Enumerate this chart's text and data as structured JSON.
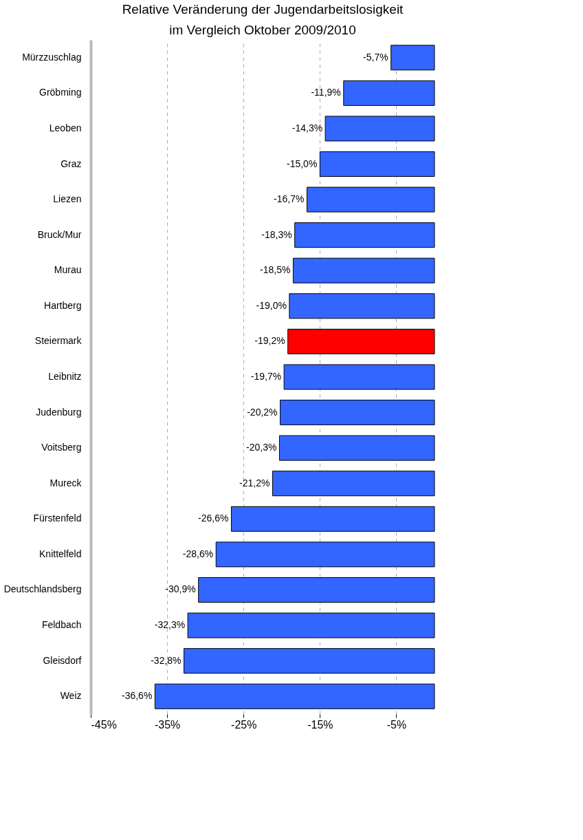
{
  "chart_data": {
    "type": "bar",
    "orientation": "horizontal",
    "title": [
      "Relative Veränderung der Jugendarbeitslosigkeit",
      "im Vergleich Oktober 2009/2010"
    ],
    "categories": [
      "Mürzzuschlag",
      "Gröbming",
      "Leoben",
      "Graz",
      "Liezen",
      "Bruck/Mur",
      "Murau",
      "Hartberg",
      "Steiermark",
      "Leibnitz",
      "Judenburg",
      "Voitsberg",
      "Mureck",
      "Fürstenfeld",
      "Knittelfeld",
      "Deutschlandsberg",
      "Feldbach",
      "Gleisdorf",
      "Weiz"
    ],
    "values": [
      -5.7,
      -11.9,
      -14.3,
      -15.0,
      -16.7,
      -18.3,
      -18.5,
      -19.0,
      -19.2,
      -19.7,
      -20.2,
      -20.3,
      -21.2,
      -26.6,
      -28.6,
      -30.9,
      -32.3,
      -32.8,
      -36.6
    ],
    "colors": [
      "#3366ff",
      "#3366ff",
      "#3366ff",
      "#3366ff",
      "#3366ff",
      "#3366ff",
      "#3366ff",
      "#3366ff",
      "#ff0000",
      "#3366ff",
      "#3366ff",
      "#3366ff",
      "#3366ff",
      "#3366ff",
      "#3366ff",
      "#3366ff",
      "#3366ff",
      "#3366ff",
      "#3366ff"
    ],
    "value_labels": [
      "-5,7%",
      "-11,9%",
      "-14,3%",
      "-15,0%",
      "-16,7%",
      "-18,3%",
      "-18,5%",
      "-19,0%",
      "-19,2%",
      "-19,7%",
      "-20,2%",
      "-20,3%",
      "-21,2%",
      "-26,6%",
      "-28,6%",
      "-30,9%",
      "-32,3%",
      "-32,8%",
      "-36,6%"
    ],
    "xlim": [
      -45,
      0
    ],
    "xticks": [
      {
        "value": -45,
        "label": "-45%"
      },
      {
        "value": -35,
        "label": "-35%"
      },
      {
        "value": -25,
        "label": "-25%"
      },
      {
        "value": -15,
        "label": "-15%"
      },
      {
        "value": -5,
        "label": "-5%"
      }
    ],
    "grid": "x",
    "line_style": "dashed"
  }
}
